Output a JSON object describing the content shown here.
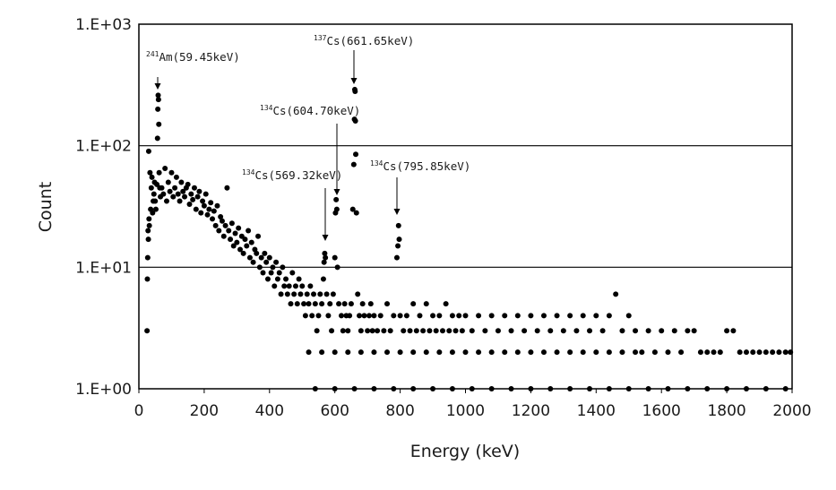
{
  "chart_data": {
    "type": "scatter",
    "title": "",
    "xlabel": "Energy (keV)",
    "ylabel": "Count",
    "xlim": [
      0,
      2000
    ],
    "ylim": [
      1,
      1000
    ],
    "yscale": "log",
    "x_ticks": [
      0,
      200,
      400,
      600,
      800,
      1000,
      1200,
      1400,
      1600,
      1800,
      2000
    ],
    "x_tick_labels": [
      "0",
      "200",
      "400",
      "600",
      "800",
      "1000",
      "1200",
      "1400",
      "1600",
      "1800",
      "2000"
    ],
    "y_ticks": [
      1,
      10,
      100,
      1000
    ],
    "y_tick_labels": [
      "1.E+00",
      "1.E+01",
      "1.E+02",
      "1.E+03"
    ],
    "y_gridlines": [
      10,
      100
    ],
    "legend": "none",
    "marker_color": "#000000",
    "annotations": [
      {
        "isotope_mass": "241",
        "label": "Am(59.45keV)",
        "x": 59.45,
        "y": 260
      },
      {
        "isotope_mass": "137",
        "label": "Cs(661.65keV)",
        "x": 661.65,
        "y": 290
      },
      {
        "isotope_mass": "134",
        "label": "Cs(604.70keV)",
        "x": 604.7,
        "y": 36
      },
      {
        "isotope_mass": "134",
        "label": "Cs(569.32keV)",
        "x": 569.32,
        "y": 13
      },
      {
        "isotope_mass": "134",
        "label": "Cs(795.85keV)",
        "x": 795.85,
        "y": 22
      }
    ],
    "series": [
      {
        "points": [
          [
            25,
            3
          ],
          [
            26,
            8
          ],
          [
            27,
            12
          ],
          [
            28,
            20
          ],
          [
            29,
            17
          ],
          [
            30,
            90
          ],
          [
            31,
            25
          ],
          [
            32,
            22
          ],
          [
            34,
            60
          ],
          [
            36,
            30
          ],
          [
            38,
            45
          ],
          [
            40,
            55
          ],
          [
            42,
            28
          ],
          [
            44,
            35
          ],
          [
            46,
            40
          ],
          [
            48,
            50
          ],
          [
            50,
            35
          ],
          [
            52,
            30
          ],
          [
            55,
            48
          ],
          [
            57,
            115
          ],
          [
            58,
            200
          ],
          [
            59,
            260
          ],
          [
            60,
            240
          ],
          [
            61,
            150
          ],
          [
            62,
            60
          ],
          [
            64,
            45
          ],
          [
            66,
            38
          ],
          [
            70,
            45
          ],
          [
            75,
            40
          ],
          [
            80,
            65
          ],
          [
            85,
            35
          ],
          [
            90,
            50
          ],
          [
            95,
            42
          ],
          [
            100,
            60
          ],
          [
            105,
            38
          ],
          [
            110,
            45
          ],
          [
            115,
            55
          ],
          [
            120,
            40
          ],
          [
            125,
            35
          ],
          [
            130,
            50
          ],
          [
            135,
            42
          ],
          [
            140,
            38
          ],
          [
            145,
            45
          ],
          [
            150,
            48
          ],
          [
            155,
            33
          ],
          [
            160,
            40
          ],
          [
            165,
            36
          ],
          [
            170,
            45
          ],
          [
            175,
            30
          ],
          [
            180,
            38
          ],
          [
            185,
            42
          ],
          [
            190,
            28
          ],
          [
            195,
            35
          ],
          [
            200,
            32
          ],
          [
            205,
            40
          ],
          [
            210,
            27
          ],
          [
            215,
            30
          ],
          [
            220,
            34
          ],
          [
            225,
            25
          ],
          [
            230,
            29
          ],
          [
            235,
            22
          ],
          [
            240,
            32
          ],
          [
            245,
            20
          ],
          [
            250,
            26
          ],
          [
            255,
            24
          ],
          [
            260,
            18
          ],
          [
            265,
            22
          ],
          [
            270,
            45
          ],
          [
            275,
            20
          ],
          [
            280,
            17
          ],
          [
            285,
            23
          ],
          [
            290,
            15
          ],
          [
            295,
            19
          ],
          [
            300,
            16
          ],
          [
            305,
            21
          ],
          [
            310,
            14
          ],
          [
            315,
            18
          ],
          [
            320,
            13
          ],
          [
            325,
            17
          ],
          [
            330,
            15
          ],
          [
            335,
            20
          ],
          [
            340,
            12
          ],
          [
            345,
            16
          ],
          [
            350,
            11
          ],
          [
            355,
            14
          ],
          [
            360,
            13
          ],
          [
            365,
            18
          ],
          [
            370,
            10
          ],
          [
            375,
            12
          ],
          [
            380,
            9
          ],
          [
            385,
            13
          ],
          [
            390,
            11
          ],
          [
            395,
            8
          ],
          [
            400,
            12
          ],
          [
            405,
            9
          ],
          [
            410,
            10
          ],
          [
            415,
            7
          ],
          [
            420,
            11
          ],
          [
            425,
            8
          ],
          [
            430,
            9
          ],
          [
            435,
            6
          ],
          [
            440,
            10
          ],
          [
            445,
            7
          ],
          [
            450,
            8
          ],
          [
            455,
            6
          ],
          [
            460,
            7
          ],
          [
            465,
            5
          ],
          [
            470,
            9
          ],
          [
            475,
            6
          ],
          [
            480,
            7
          ],
          [
            485,
            5
          ],
          [
            490,
            8
          ],
          [
            495,
            6
          ],
          [
            500,
            7
          ],
          [
            505,
            5
          ],
          [
            510,
            4
          ],
          [
            515,
            6
          ],
          [
            520,
            5
          ],
          [
            525,
            7
          ],
          [
            530,
            4
          ],
          [
            535,
            6
          ],
          [
            540,
            5
          ],
          [
            545,
            3
          ],
          [
            550,
            4
          ],
          [
            555,
            6
          ],
          [
            560,
            5
          ],
          [
            565,
            8
          ],
          [
            567,
            11
          ],
          [
            569,
            13
          ],
          [
            571,
            12
          ],
          [
            575,
            6
          ],
          [
            580,
            4
          ],
          [
            585,
            5
          ],
          [
            590,
            3
          ],
          [
            595,
            6
          ],
          [
            600,
            12
          ],
          [
            602,
            28
          ],
          [
            604,
            36
          ],
          [
            606,
            30
          ],
          [
            608,
            10
          ],
          [
            612,
            5
          ],
          [
            620,
            4
          ],
          [
            625,
            3
          ],
          [
            630,
            5
          ],
          [
            635,
            4
          ],
          [
            640,
            3
          ],
          [
            645,
            4
          ],
          [
            650,
            5
          ],
          [
            655,
            30
          ],
          [
            658,
            70
          ],
          [
            660,
            165
          ],
          [
            661,
            290
          ],
          [
            662,
            280
          ],
          [
            663,
            160
          ],
          [
            664,
            85
          ],
          [
            666,
            28
          ],
          [
            670,
            6
          ],
          [
            675,
            4
          ],
          [
            680,
            3
          ],
          [
            685,
            5
          ],
          [
            690,
            4
          ],
          [
            700,
            3
          ],
          [
            705,
            4
          ],
          [
            710,
            5
          ],
          [
            715,
            3
          ],
          [
            720,
            4
          ],
          [
            730,
            3
          ],
          [
            740,
            4
          ],
          [
            750,
            3
          ],
          [
            760,
            5
          ],
          [
            770,
            3
          ],
          [
            780,
            4
          ],
          [
            790,
            12
          ],
          [
            793,
            15
          ],
          [
            795,
            22
          ],
          [
            797,
            17
          ],
          [
            800,
            4
          ],
          [
            810,
            3
          ],
          [
            820,
            4
          ],
          [
            830,
            3
          ],
          [
            840,
            5
          ],
          [
            850,
            3
          ],
          [
            860,
            4
          ],
          [
            870,
            3
          ],
          [
            880,
            5
          ],
          [
            890,
            3
          ],
          [
            900,
            4
          ],
          [
            910,
            3
          ],
          [
            920,
            4
          ],
          [
            930,
            3
          ],
          [
            940,
            5
          ],
          [
            950,
            3
          ],
          [
            960,
            4
          ],
          [
            970,
            3
          ],
          [
            980,
            4
          ],
          [
            990,
            3
          ],
          [
            1000,
            4
          ],
          [
            1020,
            3
          ],
          [
            1040,
            4
          ],
          [
            1060,
            3
          ],
          [
            1080,
            4
          ],
          [
            1100,
            3
          ],
          [
            1120,
            4
          ],
          [
            1140,
            3
          ],
          [
            1160,
            4
          ],
          [
            1180,
            3
          ],
          [
            1200,
            4
          ],
          [
            1220,
            3
          ],
          [
            1240,
            4
          ],
          [
            1260,
            3
          ],
          [
            1280,
            4
          ],
          [
            1300,
            3
          ],
          [
            1320,
            4
          ],
          [
            1340,
            3
          ],
          [
            1360,
            4
          ],
          [
            1380,
            3
          ],
          [
            1400,
            4
          ],
          [
            1420,
            3
          ],
          [
            1440,
            4
          ],
          [
            1460,
            6
          ],
          [
            1480,
            3
          ],
          [
            1500,
            4
          ],
          [
            1520,
            3
          ],
          [
            1540,
            2
          ],
          [
            1560,
            3
          ],
          [
            1580,
            2
          ],
          [
            1600,
            3
          ],
          [
            1620,
            2
          ],
          [
            1640,
            3
          ],
          [
            1660,
            2
          ],
          [
            1680,
            3
          ],
          [
            1700,
            3
          ],
          [
            1720,
            2
          ],
          [
            1740,
            2
          ],
          [
            1760,
            2
          ],
          [
            1780,
            2
          ],
          [
            1800,
            3
          ],
          [
            1820,
            3
          ],
          [
            1840,
            2
          ],
          [
            1860,
            2
          ],
          [
            1880,
            2
          ],
          [
            1900,
            2
          ],
          [
            1920,
            2
          ],
          [
            1940,
            2
          ],
          [
            1960,
            2
          ],
          [
            1980,
            2
          ],
          [
            1995,
            2
          ],
          [
            520,
            2
          ],
          [
            560,
            2
          ],
          [
            600,
            2
          ],
          [
            640,
            2
          ],
          [
            680,
            2
          ],
          [
            720,
            2
          ],
          [
            760,
            2
          ],
          [
            800,
            2
          ],
          [
            840,
            2
          ],
          [
            880,
            2
          ],
          [
            920,
            2
          ],
          [
            960,
            2
          ],
          [
            1000,
            2
          ],
          [
            1040,
            2
          ],
          [
            1080,
            2
          ],
          [
            1120,
            2
          ],
          [
            1160,
            2
          ],
          [
            1200,
            2
          ],
          [
            1240,
            2
          ],
          [
            1280,
            2
          ],
          [
            1320,
            2
          ],
          [
            1360,
            2
          ],
          [
            1400,
            2
          ],
          [
            1440,
            2
          ],
          [
            1480,
            2
          ],
          [
            1520,
            2
          ],
          [
            540,
            1
          ],
          [
            600,
            1
          ],
          [
            660,
            1
          ],
          [
            720,
            1
          ],
          [
            780,
            1
          ],
          [
            840,
            1
          ],
          [
            900,
            1
          ],
          [
            960,
            1
          ],
          [
            1020,
            1
          ],
          [
            1080,
            1
          ],
          [
            1140,
            1
          ],
          [
            1200,
            1
          ],
          [
            1260,
            1
          ],
          [
            1320,
            1
          ],
          [
            1380,
            1
          ],
          [
            1440,
            1
          ],
          [
            1500,
            1
          ],
          [
            1560,
            1
          ],
          [
            1620,
            1
          ],
          [
            1680,
            1
          ],
          [
            1740,
            1
          ],
          [
            1800,
            1
          ],
          [
            1860,
            1
          ],
          [
            1920,
            1
          ],
          [
            1980,
            1
          ]
        ]
      }
    ]
  }
}
